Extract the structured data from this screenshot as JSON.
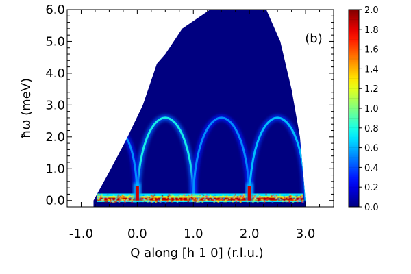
{
  "chart_data": {
    "type": "heatmap",
    "panel_label": "(b)",
    "xlabel": "Q along [h 1 0]  (r.l.u.)",
    "ylabel": "ħω (meV)",
    "xlim": [
      -1.25,
      3.5
    ],
    "ylim": [
      -0.2,
      6.0
    ],
    "x_ticks": [
      {
        "value": -1.0,
        "label": "-1.0"
      },
      {
        "value": 0.0,
        "label": "0.0"
      },
      {
        "value": 1.0,
        "label": "1.0"
      },
      {
        "value": 2.0,
        "label": "2.0"
      },
      {
        "value": 3.0,
        "label": "3.0"
      }
    ],
    "y_ticks": [
      {
        "value": 0.0,
        "label": "0.0"
      },
      {
        "value": 1.0,
        "label": "1.0"
      },
      {
        "value": 2.0,
        "label": "2.0"
      },
      {
        "value": 3.0,
        "label": "3.0"
      },
      {
        "value": 4.0,
        "label": "4.0"
      },
      {
        "value": 5.0,
        "label": "5.0"
      },
      {
        "value": 6.0,
        "label": "6.0"
      }
    ],
    "colorbar": {
      "range": [
        0.0,
        2.0
      ],
      "ticks": [
        {
          "value": 0.0,
          "label": "0.0"
        },
        {
          "value": 0.2,
          "label": "0.2"
        },
        {
          "value": 0.4,
          "label": "0.4"
        },
        {
          "value": 0.6,
          "label": "0.6"
        },
        {
          "value": 0.8,
          "label": "0.8"
        },
        {
          "value": 1.0,
          "label": "1.0"
        },
        {
          "value": 1.2,
          "label": "1.2"
        },
        {
          "value": 1.4,
          "label": "1.4"
        },
        {
          "value": 1.6,
          "label": "1.6"
        },
        {
          "value": 1.8,
          "label": "1.8"
        },
        {
          "value": 2.0,
          "label": "2.0"
        }
      ],
      "colormap": "jet"
    },
    "coverage_boundary": {
      "left": [
        [
          -0.78,
          0.0
        ],
        [
          -0.5,
          0.9
        ],
        [
          -0.2,
          1.9
        ],
        [
          0.1,
          3.0
        ],
        [
          0.35,
          4.3
        ],
        [
          0.5,
          4.6
        ],
        [
          0.8,
          5.4
        ],
        [
          1.3,
          6.0
        ]
      ],
      "right": [
        [
          2.3,
          6.0
        ],
        [
          2.55,
          5.0
        ],
        [
          2.75,
          3.5
        ],
        [
          2.9,
          2.0
        ],
        [
          3.0,
          0.0
        ]
      ]
    },
    "dispersion_branches": [
      {
        "q_center": 0.5,
        "q_half_width": 0.5,
        "e_max": 2.6,
        "intensity": 0.8
      },
      {
        "q_center": 1.5,
        "q_half_width": 0.5,
        "e_max": 2.6,
        "intensity": 0.55
      },
      {
        "q_center": 2.5,
        "q_half_width": 0.5,
        "e_max": 2.6,
        "intensity": 0.65
      },
      {
        "q_center": -0.3,
        "q_half_width": 0.3,
        "e_max": 2.1,
        "intensity": 0.55,
        "side": "right"
      }
    ],
    "elastic_line": {
      "energy": 0.0,
      "q_range": [
        -0.72,
        2.95
      ],
      "intensity": 1.9
    },
    "bragg_peaks": [
      0.0,
      2.0
    ],
    "background_value": 0.0,
    "grid": false
  }
}
